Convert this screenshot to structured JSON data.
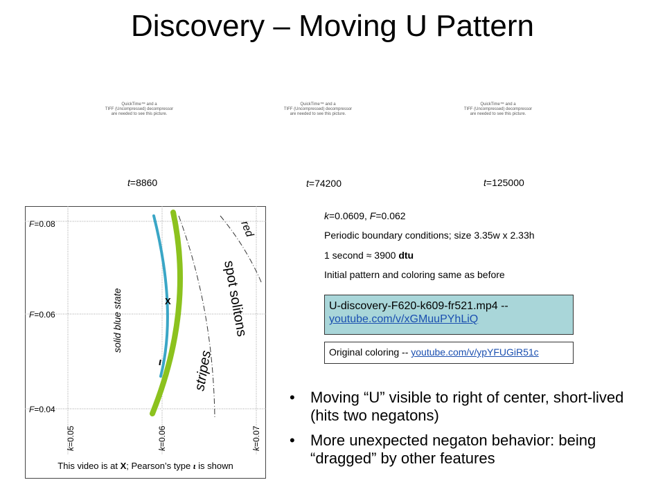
{
  "title": "Discovery – Moving U Pattern",
  "videos": [
    {
      "placeholder_line1": "QuickTime™ and a",
      "placeholder_line2": "TIFF (Uncompressed) decompressor",
      "placeholder_line3": "are needed to see this picture.",
      "time_var": "t",
      "time_value": "=8860"
    },
    {
      "placeholder_line1": "QuickTime™ and a",
      "placeholder_line2": "TIFF (Uncompressed) decompressor",
      "placeholder_line3": "are needed to see this picture.",
      "time_var": "t",
      "time_value": "=74200"
    },
    {
      "placeholder_line1": "QuickTime™ and a",
      "placeholder_line2": "TIFF (Uncompressed) decompressor",
      "placeholder_line3": "are needed to see this picture.",
      "time_var": "t",
      "time_value": "=125000"
    }
  ],
  "params": {
    "k_var": "k",
    "k_value": "=0.0609, ",
    "F_var": "F",
    "F_value": "=0.062",
    "boundary": "Periodic boundary conditions; size 3.35w x 2.33h",
    "second_prefix": "1 second ",
    "approx_symbol": "≈",
    "second_value": " 3900 ",
    "second_unit": "dtu",
    "initial": "Initial pattern and coloring same as before"
  },
  "link_box": {
    "label": "U-discovery-F620-k609-fr521.mp4 -- ",
    "link": "youtube.com/v/xGMuuPYhLiQ"
  },
  "orig_box": {
    "label": "Original coloring -- ",
    "link": "youtube.com/v/ypYFUGiR51c"
  },
  "bullets": [
    "Moving “U” visible to right of center, short-lived (hits two negatons)",
    "More unexpected negaton behavior: being “dragged” by other features"
  ],
  "diagram": {
    "F_labels": [
      {
        "var": "F",
        "value": "=0.08"
      },
      {
        "var": "F",
        "value": "=0.06"
      },
      {
        "var": "F",
        "value": "=0.04"
      }
    ],
    "k_labels": [
      {
        "var": "k",
        "value": "=0.05"
      },
      {
        "var": "k",
        "value": "=0.06"
      },
      {
        "var": "k",
        "value": "=0.07"
      }
    ],
    "region_solid_blue": "solid blue state",
    "region_stripes": "stripes",
    "region_spot_solitons": "spot solitons",
    "region_red": "red",
    "marker_x": "X",
    "marker_iota": "ι",
    "caption_prefix": "This video is at ",
    "caption_x": "X",
    "caption_mid": "; Pearson’s type ",
    "caption_iota": "ι",
    "caption_suffix": " is shown",
    "colors": {
      "blue_curve": "#3aa6c6",
      "green_curve": "#8cc21e",
      "grid": "#a0a0a0"
    }
  }
}
